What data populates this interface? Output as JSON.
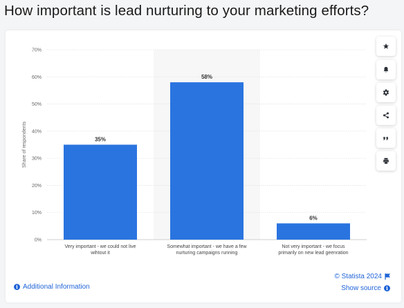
{
  "title": "How important is lead nurturing to your marketing efforts?",
  "chart_data": {
    "type": "bar",
    "categories": [
      [
        "Very important - we could not live",
        "wihtout it"
      ],
      [
        "Somewhat important - we have a few",
        "nurturing campaigns running"
      ],
      [
        "Not very important - we focus",
        "primarily on new lead geenration"
      ]
    ],
    "values": [
      35,
      58,
      6
    ],
    "data_labels": [
      "35%",
      "58%",
      "6%"
    ],
    "ylabel": "Share of respondents",
    "ylim": [
      0,
      70
    ],
    "yticks": [
      "0%",
      "10%",
      "20%",
      "30%",
      "40%",
      "50%",
      "60%",
      "70%"
    ],
    "grid": true,
    "highlighted_category": 1,
    "bar_color": "#2a74e0",
    "highlight_color": "#f7f7f7"
  },
  "toolbar": {
    "icons": [
      "star-icon",
      "bell-icon",
      "gear-icon",
      "share-icon",
      "quote-icon",
      "print-icon"
    ]
  },
  "footer": {
    "additional_info": "Additional Information",
    "copyright": "© Statista 2024",
    "show_source": "Show source"
  }
}
